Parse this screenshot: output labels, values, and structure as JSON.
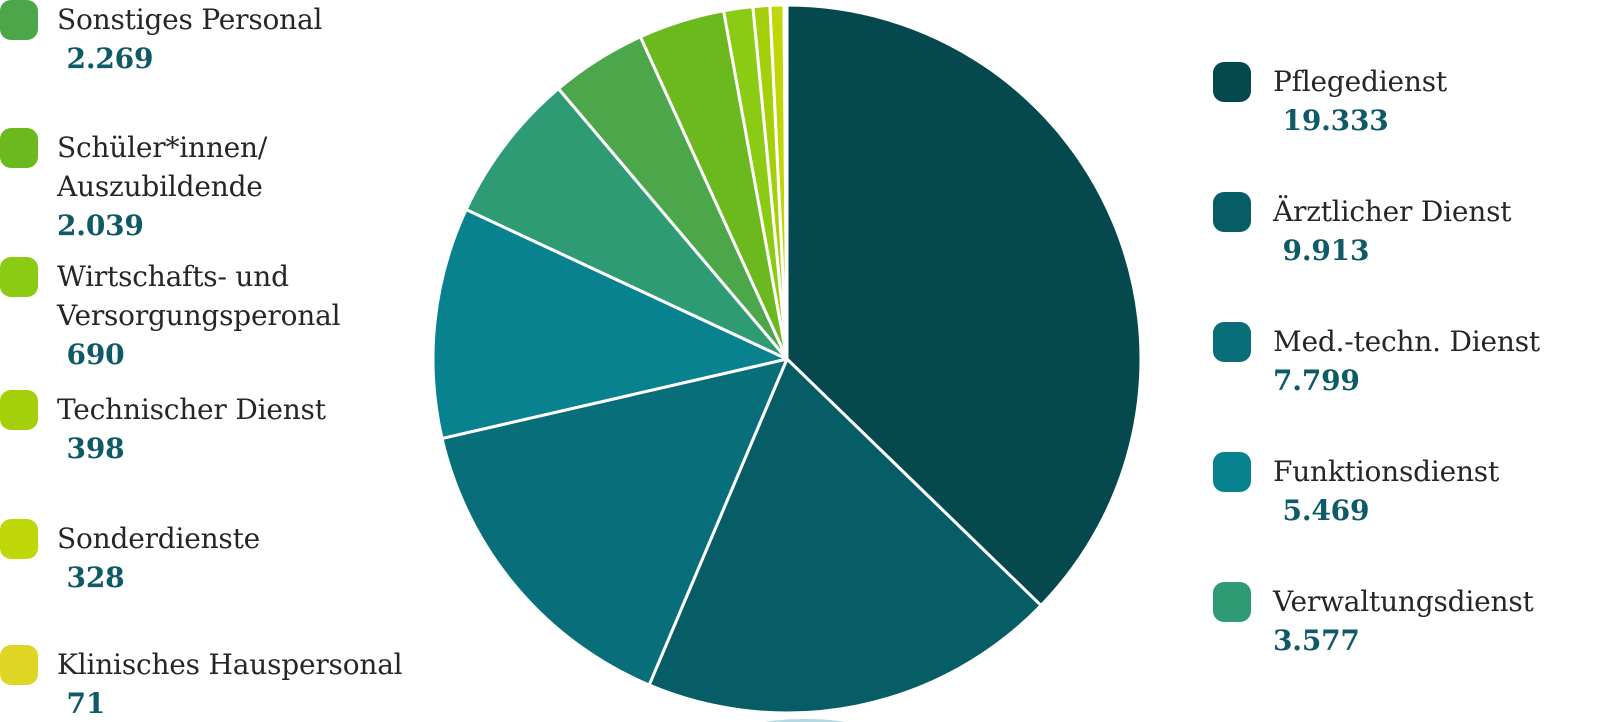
{
  "chart_data": {
    "type": "pie",
    "title": "",
    "start_angle_deg": 0,
    "direction": "clockwise",
    "legend_position": "left-and-right",
    "separator_color": "#ffffff",
    "segments": [
      {
        "label": "Pflegedienst",
        "value": 19333,
        "display_value": "19.333",
        "color": "#05494F"
      },
      {
        "label": "Ärztlicher Dienst",
        "value": 9913,
        "display_value": "9.913",
        "color": "#075D66"
      },
      {
        "label": "Med.-techn. Dienst",
        "value": 7799,
        "display_value": "7.799",
        "color": "#086E7A"
      },
      {
        "label": "Funktionsdienst",
        "value": 5469,
        "display_value": "5.469",
        "color": "#08828E"
      },
      {
        "label": "Verwaltungsdienst",
        "value": 3577,
        "display_value": "3.577",
        "color": "#2E9B75"
      },
      {
        "label": "Sonstiges Personal",
        "value": 2269,
        "display_value": "2.269",
        "color": "#4CA74A"
      },
      {
        "label": "Schüler*innen/Auszubildende",
        "value": 2039,
        "display_value": "2.039",
        "color": "#6CB81F"
      },
      {
        "label": "Wirtschafts- und Versorgungsperonal",
        "value": 690,
        "display_value": "690",
        "color": "#8CCB14"
      },
      {
        "label": "Technischer Dienst",
        "value": 398,
        "display_value": "398",
        "color": "#A3D009"
      },
      {
        "label": "Sonderdienste",
        "value": 328,
        "display_value": "328",
        "color": "#C0D707"
      },
      {
        "label": "Klinisches Hauspersonal",
        "value": 71,
        "display_value": "71",
        "color": "#DFD525"
      }
    ]
  },
  "legend_left": {
    "items": [
      {
        "label_lines": [
          "Sonstiges Personal"
        ],
        "value_text": " 2.269",
        "color": "#4CA74A"
      },
      {
        "label_lines": [
          "Schüler*innen/",
          "Auszubildende"
        ],
        "value_text": "2.039",
        "color": "#6CB81F"
      },
      {
        "label_lines": [
          "Wirtschafts- und",
          "Versorgungsperonal"
        ],
        "value_text": " 690",
        "color": "#8CCB14"
      },
      {
        "label_lines": [
          "Technischer Dienst"
        ],
        "value_text": " 398",
        "color": "#A3D009"
      },
      {
        "label_lines": [
          "Sonderdienste"
        ],
        "value_text": " 328",
        "color": "#C0D707"
      },
      {
        "label_lines": [
          "Klinisches Hauspersonal"
        ],
        "value_text": " 71",
        "color": "#DFD525"
      }
    ]
  },
  "legend_right": {
    "items": [
      {
        "label_lines": [
          "Pflegedienst"
        ],
        "value_text": " 19.333",
        "color": "#05494F"
      },
      {
        "label_lines": [
          "Ärztlicher Dienst"
        ],
        "value_text": " 9.913",
        "color": "#075D66"
      },
      {
        "label_lines": [
          "Med.-techn. Dienst"
        ],
        "value_text": "7.799",
        "color": "#086E7A"
      },
      {
        "label_lines": [
          "Funktionsdienst"
        ],
        "value_text": " 5.469",
        "color": "#08828E"
      },
      {
        "label_lines": [
          "Verwaltungsdienst"
        ],
        "value_text": "3.577",
        "color": "#2E9B75"
      }
    ]
  },
  "styles": {
    "label_color": "#26262A",
    "value_color": "#0E5A66",
    "background": "#FFFFFF",
    "bottom_shape_color": "#B5D9E2"
  }
}
